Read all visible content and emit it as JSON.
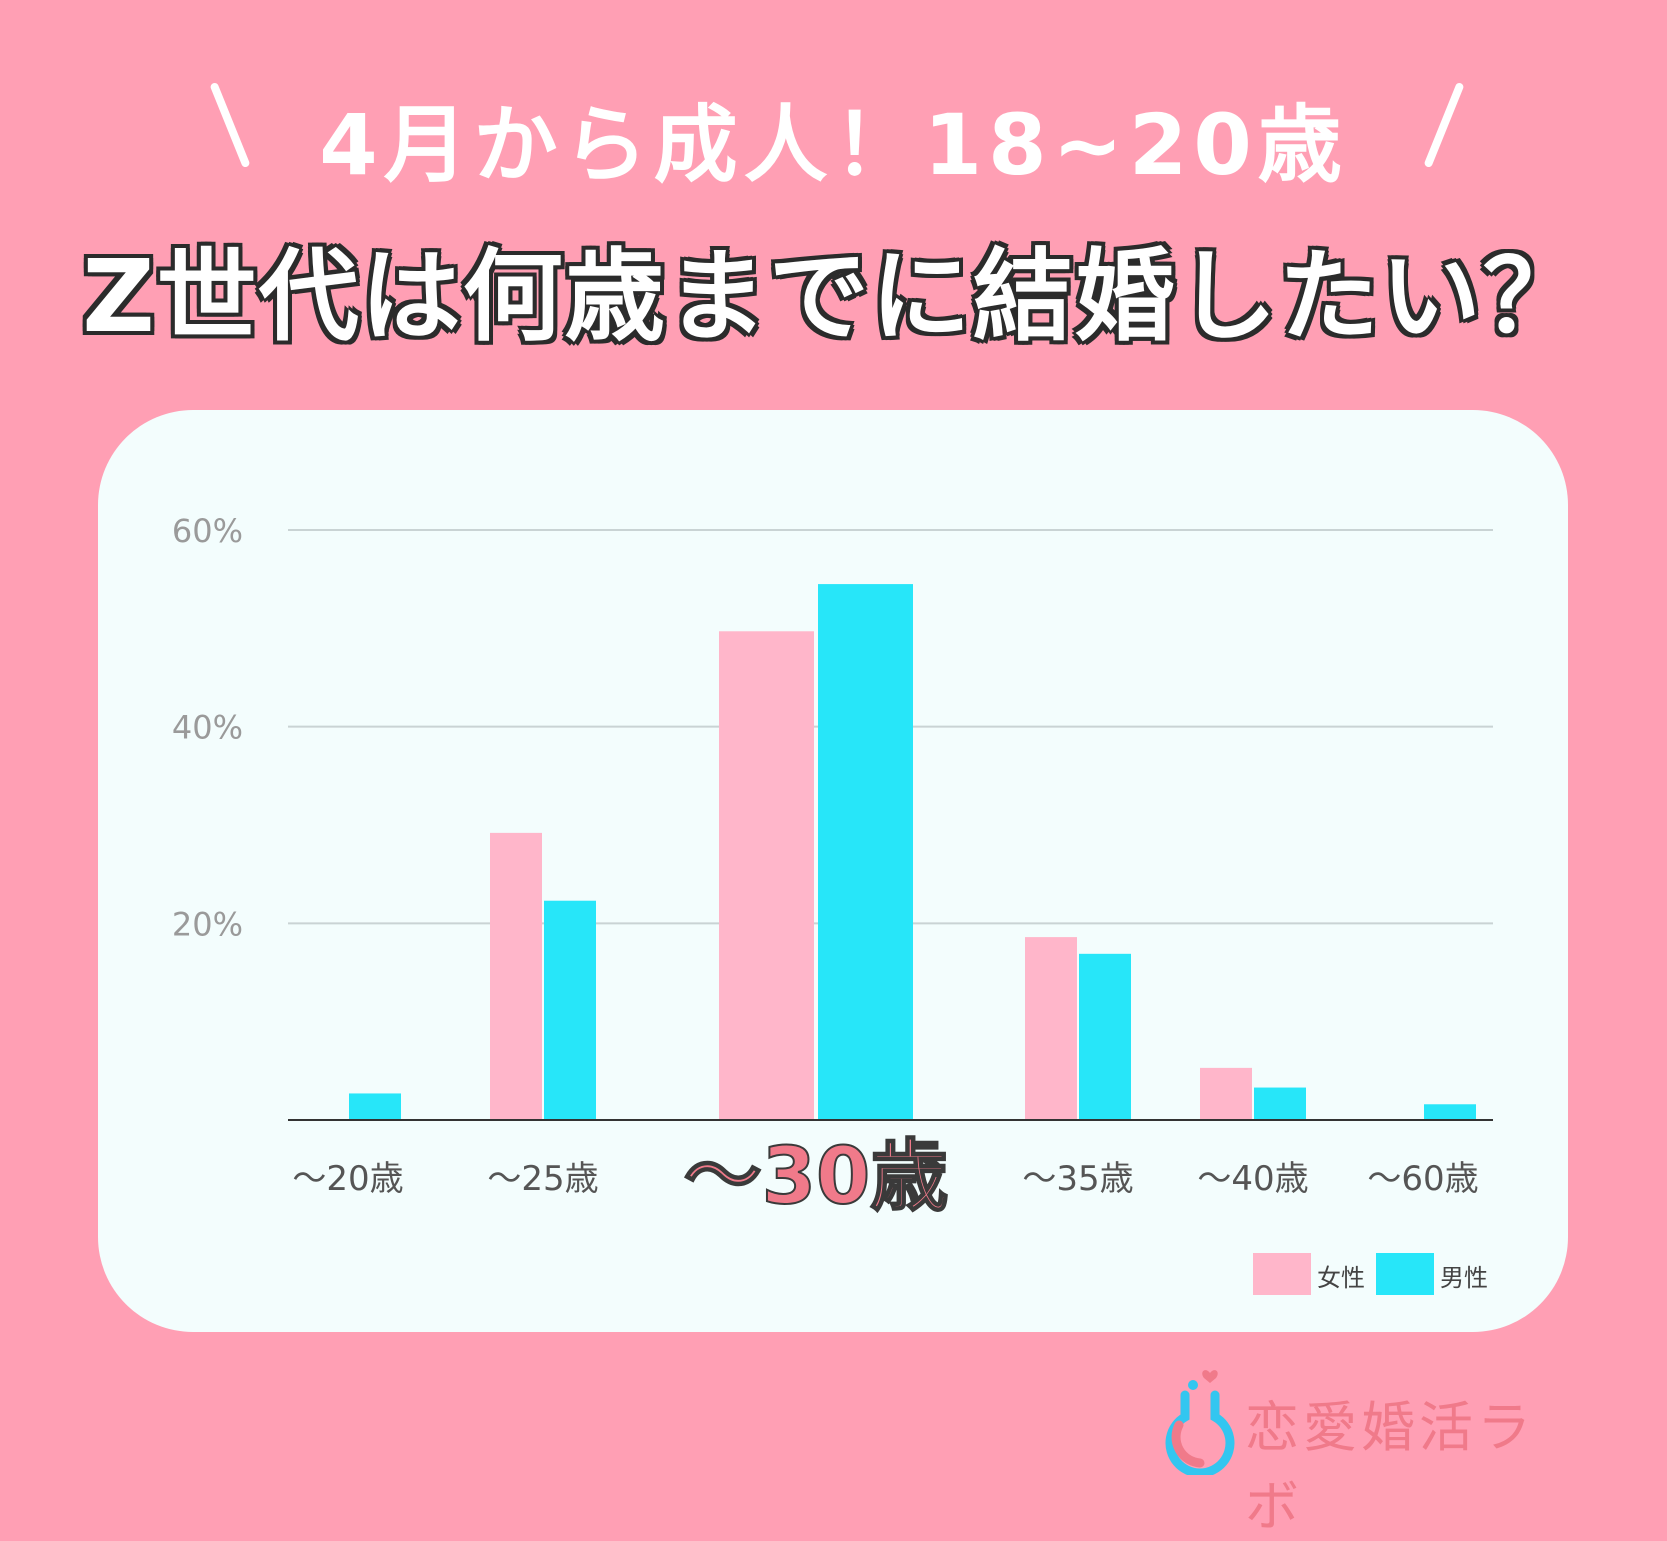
{
  "header": {
    "subtitle": "4月から成人！18~20歳",
    "title": "Z世代は何歳までに結婚したい？"
  },
  "chart_data": {
    "type": "bar",
    "categories": [
      "～20歳",
      "～25歳",
      "～30歳",
      "～35歳",
      "～40歳",
      "～60歳"
    ],
    "highlight_category": "～30歳",
    "series": [
      {
        "name": "女性",
        "color": "#ffb6ca",
        "values": [
          0,
          29.2,
          49.7,
          18.6,
          5.3,
          0
        ]
      },
      {
        "name": "男性",
        "color": "#27e6f9",
        "values": [
          2.7,
          22.3,
          54.5,
          16.9,
          3.3,
          1.6
        ]
      }
    ],
    "ylim": [
      0,
      60
    ],
    "yticks": [
      20,
      40,
      60
    ],
    "ytick_labels": [
      "20%",
      "40%",
      "60%"
    ],
    "grid": true,
    "legend_position": "bottom-right"
  },
  "logo": {
    "text": "恋愛婚活ラボ"
  }
}
